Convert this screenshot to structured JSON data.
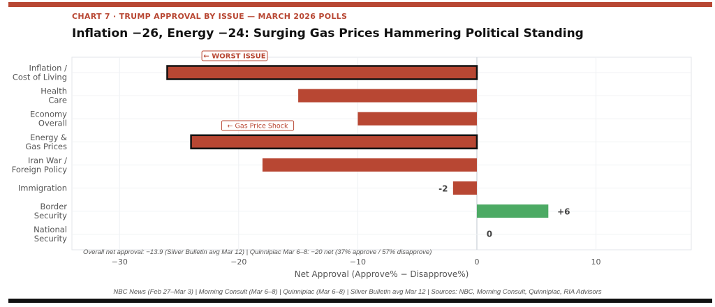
{
  "header": {
    "kicker": "CHART 7  ·  TRUMP APPROVAL BY ISSUE — MARCH 2026 POLLS",
    "title": "Inflation −26, Energy −24: Surging Gas Prices Hammering Political Standing"
  },
  "chart_data": {
    "type": "bar",
    "orientation": "horizontal",
    "categories": [
      "Inflation /\nCost of Living",
      "Health\nCare",
      "Economy\nOverall",
      "Energy &\nGas Prices",
      "Iran War /\nForeign Policy",
      "Immigration",
      "Border\nSecurity",
      "National\nSecurity"
    ],
    "values": [
      -26,
      -15,
      -10,
      -24,
      -18,
      -2,
      6,
      0
    ],
    "data_labels": [
      "",
      "",
      "",
      "",
      "",
      "-2",
      "+6",
      "0"
    ],
    "highlighted": [
      true,
      false,
      false,
      true,
      false,
      false,
      false,
      false
    ],
    "xlabel": "Net Approval (Approve% − Disapprove%)",
    "xlim": [
      -34,
      18
    ],
    "xticks": [
      -30,
      -20,
      -10,
      0,
      10
    ],
    "xtick_labels": [
      "−30",
      "−20",
      "−10",
      "0",
      "10"
    ],
    "grid": true,
    "annotations": [
      {
        "text": "← WORST ISSUE",
        "category": "Inflation /\nCost of Living"
      },
      {
        "text": "← Gas Price Shock",
        "category": "Energy &\nGas Prices"
      }
    ],
    "note": "Overall net approval: −13.9 (Silver Bulletin avg Mar 12) | Quinnipiac Mar 6–8: −20 net (37% approve / 57% disapprove)",
    "colors": {
      "negative": "#b84733",
      "positive": "#4caa64",
      "highlight_border": "#111111"
    }
  },
  "footer": "NBC News (Feb 27–Mar 3) | Morning Consult (Mar 6–8) | Quinnipiac (Mar 6–8) | Silver Bulletin avg Mar 12 | Sources: NBC, Morning Consult, Quinnipiac, RIA Advisors"
}
